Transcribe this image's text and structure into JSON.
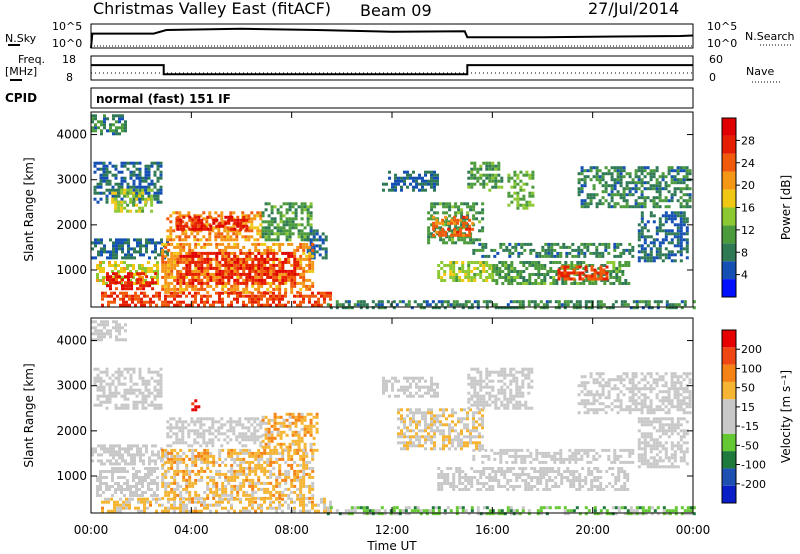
{
  "header": {
    "title": "Christmas Valley East (fitACF)",
    "beam": "Beam 09",
    "date": "27/Jul/2014"
  },
  "top_panel": {
    "nsky_label": "N.Sky",
    "nsky_ticks": [
      "10^5",
      "10^0"
    ],
    "nsearch_label": "N.Search",
    "nsearch_ticks": [
      "10^5",
      "10^0"
    ]
  },
  "freq_panel": {
    "freq_label_1": "Freq.",
    "freq_label_2": "[MHz]",
    "freq_ticks": [
      "18",
      "8"
    ],
    "nave_label": "Nave",
    "nave_ticks": [
      "60",
      "0"
    ]
  },
  "cpid": {
    "label": "CPID",
    "mode": "normal (fast) 151 IF"
  },
  "colors": {
    "power": [
      "#0010ff",
      "#1450b4",
      "#2f7a55",
      "#4b9a3c",
      "#8cc832",
      "#f0c814",
      "#f59614",
      "#f05a0a",
      "#e61e00",
      "#e00000"
    ],
    "velocity": [
      "#0a1ec8",
      "#1e50b4",
      "#1e7a3c",
      "#64c832",
      "#c8c8c8",
      "#c8c8c8",
      "#f5b432",
      "#f58214",
      "#f04614",
      "#e60000"
    ]
  },
  "chart_data": [
    {
      "type": "heatmap",
      "panel": "power",
      "xlabel": "Time UT",
      "ylabel": "Slant Range [km]",
      "x_ticks": [
        "00:00",
        "04:00",
        "08:00",
        "12:00",
        "16:00",
        "20:00",
        "00:00"
      ],
      "xlim": [
        0,
        24
      ],
      "y_ticks": [
        "1000",
        "2000",
        "3000",
        "4000"
      ],
      "ylim": [
        180,
        4500
      ],
      "colorbar": {
        "label": "Power [dB]",
        "ticks": [
          "28",
          "24",
          "20",
          "16",
          "12",
          "8",
          "4"
        ],
        "range": [
          0,
          30
        ]
      },
      "regions": [
        {
          "t0": 0.0,
          "t1": 1.4,
          "r0": 4000,
          "r1": 4450,
          "v": 8
        },
        {
          "t0": 0.1,
          "t1": 2.8,
          "r0": 2500,
          "r1": 3400,
          "v": 6
        },
        {
          "t0": 0.8,
          "t1": 2.4,
          "r0": 2300,
          "r1": 2800,
          "v": 14
        },
        {
          "t0": 0.0,
          "t1": 3.0,
          "r0": 1300,
          "r1": 1700,
          "v": 6
        },
        {
          "t0": 0.2,
          "t1": 2.6,
          "r0": 700,
          "r1": 1200,
          "v": 16
        },
        {
          "t0": 0.6,
          "t1": 2.6,
          "r0": 600,
          "r1": 950,
          "v": 26
        },
        {
          "t0": 3.0,
          "t1": 6.8,
          "r0": 1700,
          "r1": 2300,
          "v": 20
        },
        {
          "t0": 3.4,
          "t1": 6.2,
          "r0": 1900,
          "r1": 2200,
          "v": 26
        },
        {
          "t0": 6.8,
          "t1": 8.8,
          "r0": 1700,
          "r1": 2500,
          "v": 10
        },
        {
          "t0": 8.6,
          "t1": 9.4,
          "r0": 1300,
          "r1": 1900,
          "v": 6
        },
        {
          "t0": 2.8,
          "t1": 8.8,
          "r0": 500,
          "r1": 1600,
          "v": 20
        },
        {
          "t0": 3.4,
          "t1": 8.2,
          "r0": 700,
          "r1": 1400,
          "v": 26
        },
        {
          "t0": 0.4,
          "t1": 9.6,
          "r0": 200,
          "r1": 520,
          "v": 24
        },
        {
          "t0": 9.4,
          "t1": 24.0,
          "r0": 180,
          "r1": 330,
          "v": 8
        },
        {
          "t0": 11.6,
          "t1": 13.8,
          "r0": 2800,
          "r1": 3200,
          "v": 6
        },
        {
          "t0": 13.4,
          "t1": 15.6,
          "r0": 1600,
          "r1": 2500,
          "v": 10
        },
        {
          "t0": 13.6,
          "t1": 15.2,
          "r0": 1800,
          "r1": 2200,
          "v": 22
        },
        {
          "t0": 15.2,
          "t1": 21.6,
          "r0": 1300,
          "r1": 1600,
          "v": 8
        },
        {
          "t0": 13.8,
          "t1": 16.0,
          "r0": 800,
          "r1": 1200,
          "v": 14
        },
        {
          "t0": 16.0,
          "t1": 21.4,
          "r0": 700,
          "r1": 1200,
          "v": 10
        },
        {
          "t0": 18.6,
          "t1": 20.6,
          "r0": 800,
          "r1": 1100,
          "v": 24
        },
        {
          "t0": 15.0,
          "t1": 16.4,
          "r0": 2800,
          "r1": 3400,
          "v": 10
        },
        {
          "t0": 16.6,
          "t1": 17.6,
          "r0": 2400,
          "r1": 3200,
          "v": 12
        },
        {
          "t0": 19.4,
          "t1": 23.9,
          "r0": 2400,
          "r1": 3300,
          "v": 8
        },
        {
          "t0": 21.8,
          "t1": 23.8,
          "r0": 1200,
          "r1": 2300,
          "v": 6
        }
      ]
    },
    {
      "type": "heatmap",
      "panel": "velocity",
      "xlabel": "Time UT",
      "ylabel": "Slant Range [km]",
      "x_ticks": [
        "00:00",
        "04:00",
        "08:00",
        "12:00",
        "16:00",
        "20:00",
        "00:00"
      ],
      "xlim": [
        0,
        24
      ],
      "y_ticks": [
        "1000",
        "2000",
        "3000",
        "4000"
      ],
      "ylim": [
        180,
        4500
      ],
      "colorbar": {
        "label": "Velocity [m s⁻¹]",
        "ticks": [
          "200",
          "100",
          "50",
          "15",
          "-15",
          "-50",
          "-100",
          "-200"
        ],
        "range": [
          -250,
          250
        ]
      },
      "regions": [
        {
          "t0": 0.0,
          "t1": 1.4,
          "r0": 4000,
          "r1": 4450,
          "v": 0
        },
        {
          "t0": 0.1,
          "t1": 2.8,
          "r0": 2500,
          "r1": 3400,
          "v": 0
        },
        {
          "t0": 0.0,
          "t1": 3.0,
          "r0": 1300,
          "r1": 1700,
          "v": 0
        },
        {
          "t0": 0.2,
          "t1": 2.6,
          "r0": 600,
          "r1": 1200,
          "v": 0
        },
        {
          "t0": 3.0,
          "t1": 6.8,
          "r0": 1700,
          "r1": 2300,
          "v": 0
        },
        {
          "t0": 6.8,
          "t1": 9.0,
          "r0": 1600,
          "r1": 2400,
          "v": 80
        },
        {
          "t0": 4.0,
          "t1": 4.3,
          "r0": 2500,
          "r1": 2700,
          "v": 230
        },
        {
          "t0": 2.8,
          "t1": 8.8,
          "r0": 500,
          "r1": 1600,
          "v": 70
        },
        {
          "t0": 0.4,
          "t1": 9.6,
          "r0": 200,
          "r1": 520,
          "v": 60
        },
        {
          "t0": 9.4,
          "t1": 24.0,
          "r0": 180,
          "r1": 330,
          "v": -70
        },
        {
          "t0": 11.6,
          "t1": 13.8,
          "r0": 2800,
          "r1": 3200,
          "v": 0
        },
        {
          "t0": 12.2,
          "t1": 15.6,
          "r0": 1600,
          "r1": 2500,
          "v": 40
        },
        {
          "t0": 15.2,
          "t1": 21.6,
          "r0": 1300,
          "r1": 1600,
          "v": 0
        },
        {
          "t0": 13.8,
          "t1": 21.4,
          "r0": 700,
          "r1": 1200,
          "v": 0
        },
        {
          "t0": 15.0,
          "t1": 17.6,
          "r0": 2500,
          "r1": 3400,
          "v": 0
        },
        {
          "t0": 19.4,
          "t1": 23.9,
          "r0": 2400,
          "r1": 3300,
          "v": 0
        },
        {
          "t0": 21.8,
          "t1": 23.8,
          "r0": 1200,
          "r1": 2300,
          "v": 0
        }
      ]
    },
    {
      "type": "line",
      "panel": "nsky",
      "x": [
        0.0,
        0.05,
        2.5,
        3.0,
        6.0,
        9.0,
        12.0,
        14.9,
        15.0,
        18.0,
        21.0,
        23.5,
        24.0
      ],
      "values": [
        0.0,
        0.6,
        0.6,
        0.75,
        0.8,
        0.75,
        0.68,
        0.7,
        0.45,
        0.45,
        0.48,
        0.5,
        0.52
      ]
    },
    {
      "type": "line",
      "panel": "frequency",
      "x": [
        0.0,
        2.9,
        2.9,
        15.0,
        15.0,
        24.0
      ],
      "values": [
        14.2,
        14.2,
        10.4,
        10.4,
        14.2,
        14.2
      ]
    }
  ]
}
